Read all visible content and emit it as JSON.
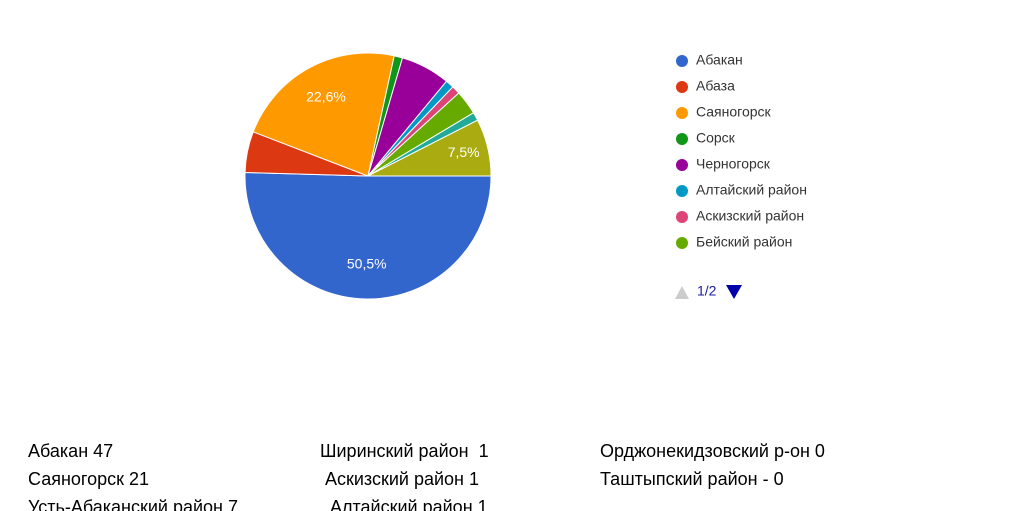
{
  "chart_data": {
    "type": "pie",
    "categories": [
      "Абакан",
      "Абаза",
      "Саяногорск",
      "Сорск",
      "Черногорск",
      "Алтайский район",
      "Аскизский район",
      "Бейский район",
      null,
      null
    ],
    "values": [
      50.5,
      5.4,
      22.6,
      1.1,
      6.5,
      1.1,
      1.1,
      3.2,
      1.1,
      7.5
    ],
    "value_labels": [
      "50,5%",
      null,
      "22,6%",
      null,
      null,
      null,
      null,
      null,
      null,
      "7,5%"
    ],
    "colors": [
      "#3366cc",
      "#dc3912",
      "#ff9900",
      "#109618",
      "#990099",
      "#0099c6",
      "#dd4477",
      "#66aa00",
      "#22aa99",
      "#aaaa11"
    ],
    "legend_page": "1/2"
  },
  "notes": [
    [
      "Абакан 47",
      "Саяногорск 21",
      "Усть-Абаканский район 7"
    ],
    [
      "Ширинский район  1",
      "Аскизский район 1",
      "Алтайский район 1"
    ],
    [
      "Орджонекидзовский р-он 0",
      "Таштыпский район - 0"
    ]
  ]
}
